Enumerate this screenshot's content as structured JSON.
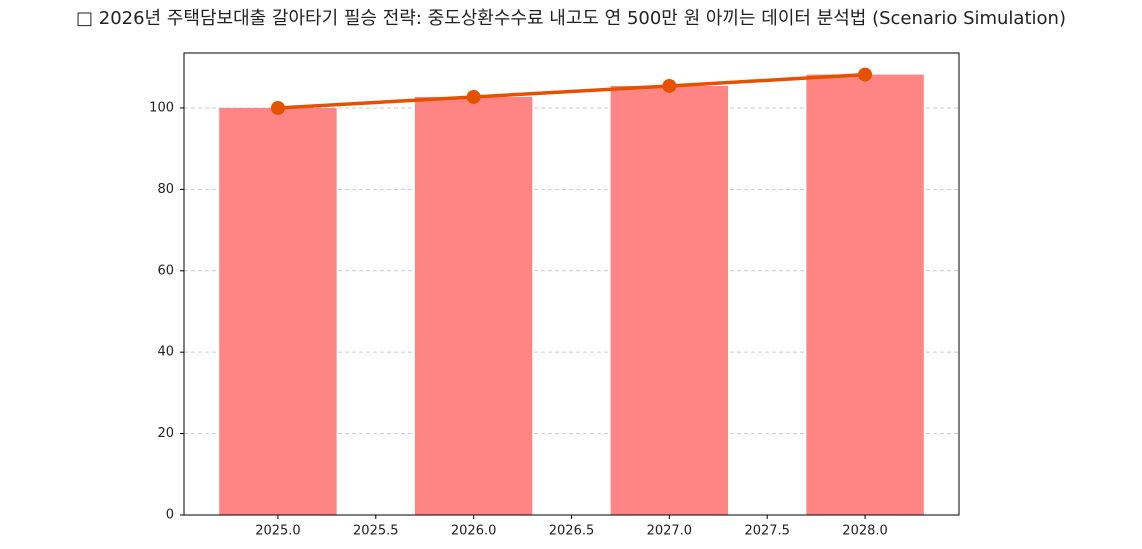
{
  "chart_data": {
    "type": "bar",
    "title": "□ 2026년 주택담보대출 갈아타기 필승 전략: 중도상환수수료 내고도 연 500만 원 아끼는 데이터 분석법 (Scenario Simulation)",
    "x": [
      2025,
      2026,
      2027,
      2028
    ],
    "series": [
      {
        "type": "bar",
        "color": "#ff8585",
        "values": [
          100,
          102.7,
          105.4,
          108.2
        ]
      },
      {
        "type": "line",
        "color": "#e65100",
        "values": [
          100,
          102.7,
          105.4,
          108.2
        ]
      }
    ],
    "bar_width": 0.6,
    "xlim": [
      2024.52,
      2028.48
    ],
    "xticks": [
      {
        "value": 2025,
        "label": "2025.0"
      },
      {
        "value": 2025.5,
        "label": "2025.5"
      },
      {
        "value": 2026,
        "label": "2026.0"
      },
      {
        "value": 2026.5,
        "label": "2026.5"
      },
      {
        "value": 2027,
        "label": "2027.0"
      },
      {
        "value": 2027.5,
        "label": "2027.5"
      },
      {
        "value": 2028,
        "label": "2028.0"
      }
    ],
    "ylim": [
      0,
      113.5
    ],
    "yticks": [
      0,
      20,
      40,
      60,
      80,
      100
    ],
    "grid": true
  }
}
